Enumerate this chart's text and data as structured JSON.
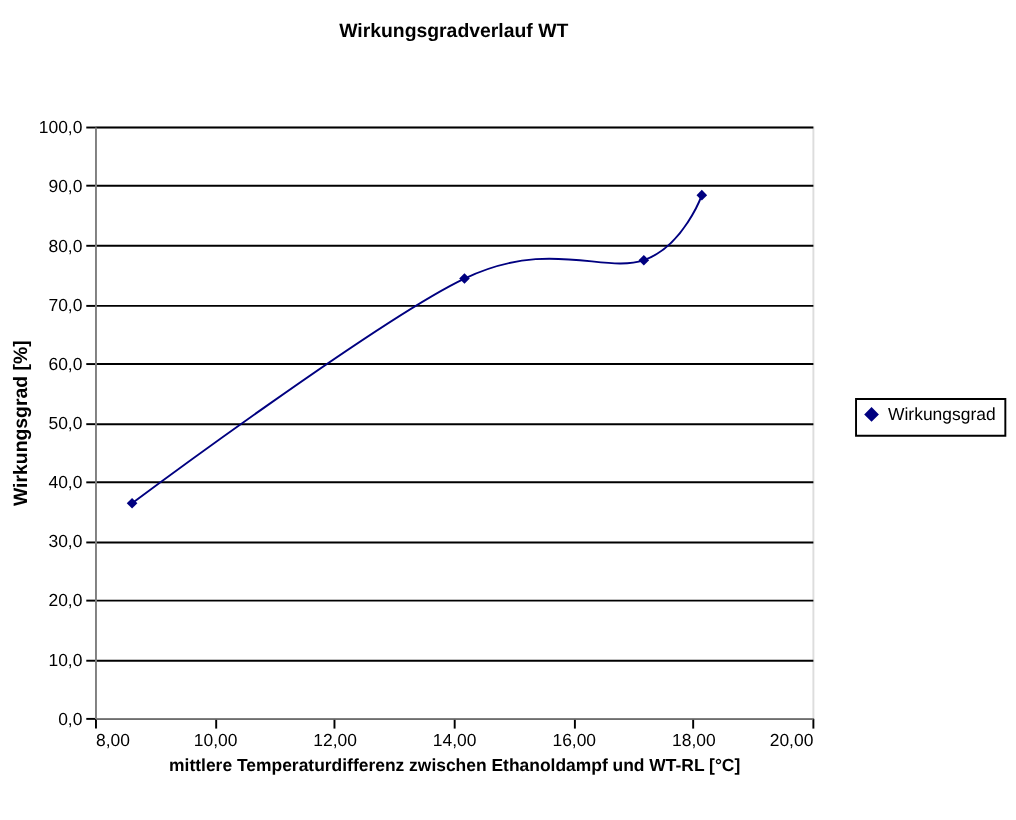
{
  "chart_data": {
    "type": "line",
    "title": "Wirkungsgradverlauf WT",
    "xlabel": "mittlere Temperaturdifferenz zwischen Ethanoldampf und WT-RL [°C]",
    "ylabel": "Wirkungsgrad [%]",
    "x": [
      8.62,
      14.18,
      17.18,
      18.15
    ],
    "series": [
      {
        "name": "Wirkungsgrad",
        "color": "#000080",
        "values": [
          36.3,
          74.3,
          77.4,
          88.4
        ]
      }
    ],
    "xlim": [
      8,
      20
    ],
    "xticks": [
      {
        "value": 8,
        "label": "8,00"
      },
      {
        "value": 10,
        "label": "10,00"
      },
      {
        "value": 12,
        "label": "12,00"
      },
      {
        "value": 14,
        "label": "14,00"
      },
      {
        "value": 16,
        "label": "16,00"
      },
      {
        "value": 18,
        "label": "18,00"
      },
      {
        "value": 20,
        "label": "20,00"
      }
    ],
    "ylim": [
      0,
      100
    ],
    "yticks": [
      {
        "value": 0,
        "label": "0,0"
      },
      {
        "value": 10,
        "label": "10,0"
      },
      {
        "value": 20,
        "label": "20,0"
      },
      {
        "value": 30,
        "label": "30,0"
      },
      {
        "value": 40,
        "label": "40,0"
      },
      {
        "value": 50,
        "label": "50,0"
      },
      {
        "value": 60,
        "label": "60,0"
      },
      {
        "value": 70,
        "label": "70,0"
      },
      {
        "value": 80,
        "label": "80,0"
      },
      {
        "value": 90,
        "label": "90,0"
      },
      {
        "value": 100,
        "label": "100,0"
      }
    ],
    "grid": "y",
    "legend": "right",
    "marker": "diamond",
    "line_style": "solid"
  }
}
